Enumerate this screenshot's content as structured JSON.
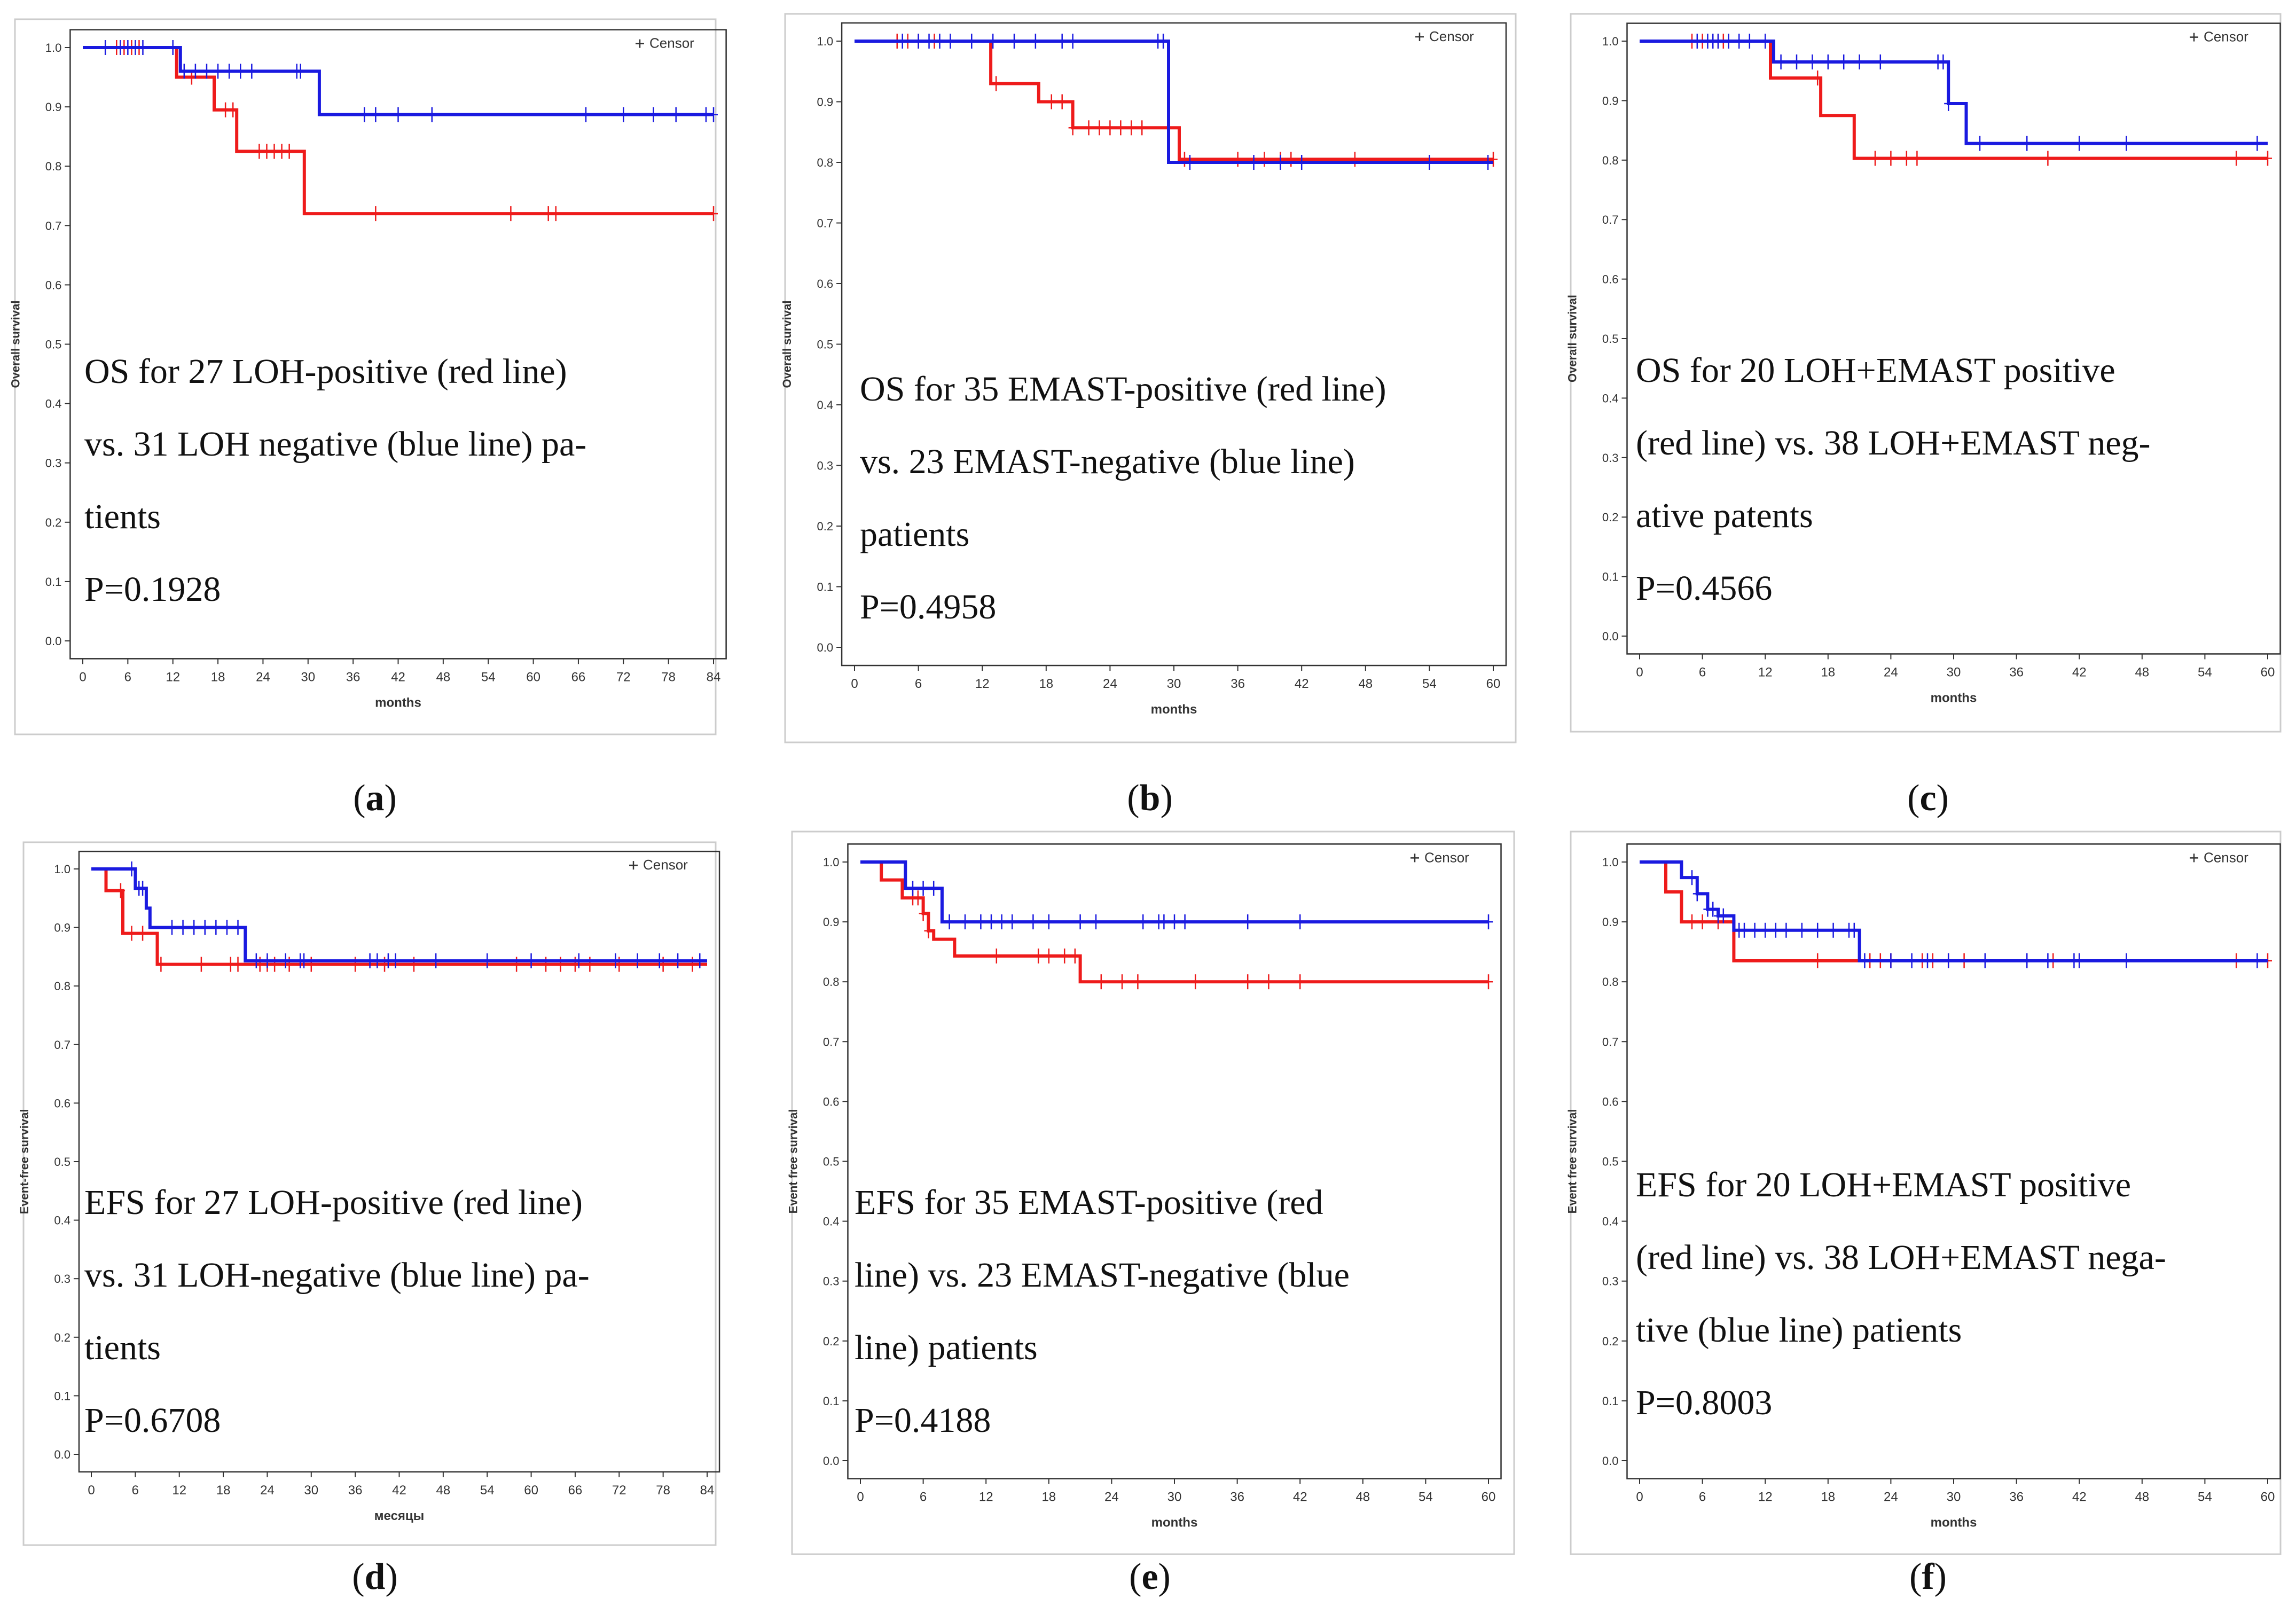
{
  "colors": {
    "red": "#ee1b1b",
    "blue": "#1a1ae0",
    "axis": "#333333",
    "frame": "#cccccc"
  },
  "chart_data": [
    {
      "type": "line",
      "id": "a",
      "label": "a",
      "legend": "Censor",
      "title_lines": [
        "OS for 27 LOH-positive (red line)",
        "vs. 31 LOH negative (blue line) pa-",
        "tients",
        "P=0.1928"
      ],
      "ylabel": "Overall survival",
      "xlabel": "months",
      "xlim": [
        0,
        84
      ],
      "ylim": [
        0,
        1
      ],
      "xticks": [
        "0",
        "6",
        "12",
        "18",
        "24",
        "30",
        "36",
        "42",
        "48",
        "54",
        "60",
        "66",
        "72",
        "78",
        "84"
      ],
      "yticks": [
        "0.0",
        "0.1",
        "0.2",
        "0.3",
        "0.4",
        "0.5",
        "0.6",
        "0.7",
        "0.8",
        "0.9",
        "1.0"
      ],
      "series": [
        {
          "name": "LOH-positive",
          "color": "red",
          "steps": [
            [
              0,
              1.0
            ],
            [
              12.5,
              0.95
            ],
            [
              17.5,
              0.895
            ],
            [
              20.5,
              0.825
            ],
            [
              29.5,
              0.72
            ],
            [
              84,
              0.72
            ]
          ],
          "censors": [
            4.5,
            5.5,
            6.5,
            7.5,
            14.5,
            19,
            20,
            23.5,
            24.5,
            25.5,
            26.5,
            27.5,
            39,
            57,
            62,
            63,
            84
          ]
        },
        {
          "name": "LOH-negative",
          "color": "blue",
          "steps": [
            [
              0,
              1.0
            ],
            [
              13,
              0.96
            ],
            [
              31.5,
              0.887
            ],
            [
              84,
              0.887
            ]
          ],
          "censors": [
            3,
            5,
            6,
            7,
            8,
            12,
            13.5,
            15,
            16.5,
            18,
            19.5,
            21,
            22.5,
            28.5,
            29,
            37.5,
            39,
            42,
            46.5,
            67,
            72,
            76,
            79,
            83,
            84
          ]
        }
      ]
    },
    {
      "type": "line",
      "id": "b",
      "label": "b",
      "legend": "Censor",
      "title_lines": [
        "OS for 35 EMAST-positive (red line)",
        "vs. 23 EMAST-negative (blue line)",
        "patients",
        "P=0.4958"
      ],
      "ylabel": "Overall survival",
      "xlabel": "months",
      "xlim": [
        0,
        60
      ],
      "ylim": [
        0,
        1
      ],
      "xticks": [
        "0",
        "6",
        "12",
        "18",
        "24",
        "30",
        "36",
        "42",
        "48",
        "54",
        "60"
      ],
      "yticks": [
        "0.0",
        "0.1",
        "0.2",
        "0.3",
        "0.4",
        "0.5",
        "0.6",
        "0.7",
        "0.8",
        "0.9",
        "1.0"
      ],
      "series": [
        {
          "name": "EMAST-positive",
          "color": "red",
          "steps": [
            [
              0,
              1.0
            ],
            [
              12.8,
              0.93
            ],
            [
              17.3,
              0.9
            ],
            [
              20.5,
              0.857
            ],
            [
              30.5,
              0.805
            ],
            [
              60,
              0.805
            ]
          ],
          "censors": [
            4,
            5,
            6,
            7.5,
            13.3,
            18.5,
            19.5,
            20.5,
            22,
            23,
            24,
            25,
            26,
            27,
            31,
            36,
            38.5,
            40,
            41,
            47,
            60
          ]
        },
        {
          "name": "EMAST-negative",
          "color": "blue",
          "steps": [
            [
              0,
              1.0
            ],
            [
              29.5,
              0.8
            ],
            [
              60,
              0.8
            ]
          ],
          "censors": [
            4.5,
            6,
            7,
            8,
            9,
            11,
            13,
            15,
            17,
            19.5,
            20.5,
            28.5,
            29,
            31.5,
            37.5,
            40,
            42,
            54,
            59.5
          ]
        }
      ]
    },
    {
      "type": "line",
      "id": "c",
      "label": "c",
      "legend": "Censor",
      "title_lines": [
        "OS for 20 LOH+EMAST positive",
        "(red line) vs. 38 LOH+EMAST neg-",
        "ative patents",
        "P=0.4566"
      ],
      "ylabel": "Overall survival",
      "xlabel": "months",
      "xlim": [
        0,
        60
      ],
      "ylim": [
        0,
        1
      ],
      "xticks": [
        "0",
        "6",
        "12",
        "18",
        "24",
        "30",
        "36",
        "42",
        "48",
        "54",
        "60"
      ],
      "yticks": [
        "0.0",
        "0.1",
        "0.2",
        "0.3",
        "0.4",
        "0.5",
        "0.6",
        "0.7",
        "0.8",
        "0.9",
        "1.0"
      ],
      "series": [
        {
          "name": "LOH+EMAST positive",
          "color": "red",
          "steps": [
            [
              0,
              1.0
            ],
            [
              12.5,
              0.938
            ],
            [
              17.3,
              0.875
            ],
            [
              20.5,
              0.803
            ],
            [
              60,
              0.803
            ]
          ],
          "censors": [
            5,
            6,
            7,
            7.5,
            8,
            17,
            22.5,
            24,
            25.5,
            26.5,
            39,
            57,
            60
          ]
        },
        {
          "name": "LOH+EMAST negative",
          "color": "blue",
          "steps": [
            [
              0,
              1.0
            ],
            [
              12.8,
              0.965
            ],
            [
              29.5,
              0.895
            ],
            [
              31.2,
              0.828
            ],
            [
              60,
              0.828
            ]
          ],
          "censors": [
            5.5,
            6.5,
            7,
            7.5,
            8.5,
            9.5,
            10.5,
            12,
            13.5,
            15,
            16.5,
            18,
            19.5,
            21,
            23,
            28.5,
            29,
            29.5,
            32.5,
            37,
            42,
            46.5,
            59
          ]
        }
      ]
    },
    {
      "type": "line",
      "id": "d",
      "label": "d",
      "legend": "Censor",
      "title_lines": [
        "EFS for 27 LOH-positive (red line)",
        "vs. 31 LOH-negative (blue line) pa-",
        "tients",
        "P=0.6708"
      ],
      "ylabel": "Event-free survival",
      "xlabel": "месяцы",
      "xlim": [
        0,
        84
      ],
      "ylim": [
        0,
        1
      ],
      "xticks": [
        "0",
        "6",
        "12",
        "18",
        "24",
        "30",
        "36",
        "42",
        "48",
        "54",
        "60",
        "66",
        "72",
        "78",
        "84"
      ],
      "yticks": [
        "0.0",
        "0.1",
        "0.2",
        "0.3",
        "0.4",
        "0.5",
        "0.6",
        "0.7",
        "0.8",
        "0.9",
        "1.0"
      ],
      "series": [
        {
          "name": "LOH-positive",
          "color": "red",
          "steps": [
            [
              0,
              1.0
            ],
            [
              2,
              0.963
            ],
            [
              4.3,
              0.89
            ],
            [
              9,
              0.837
            ],
            [
              84,
              0.837
            ]
          ],
          "censors": [
            4,
            5.5,
            7,
            9.5,
            15,
            19,
            20,
            23,
            24,
            25,
            27,
            30,
            36,
            40,
            44,
            58,
            62,
            64,
            66,
            68,
            72,
            78,
            82
          ]
        },
        {
          "name": "LOH-negative",
          "color": "blue",
          "steps": [
            [
              0,
              1.0
            ],
            [
              6,
              0.967
            ],
            [
              7.5,
              0.933
            ],
            [
              8,
              0.9
            ],
            [
              21,
              0.843
            ],
            [
              84,
              0.843
            ]
          ],
          "censors": [
            5.5,
            6.5,
            7,
            11,
            12.5,
            14,
            15.5,
            17,
            18.5,
            20,
            22.5,
            24,
            26.5,
            28.5,
            29,
            38,
            39,
            40.5,
            41.5,
            47,
            54,
            60,
            66.5,
            71.5,
            74.5,
            77.5,
            80,
            83
          ]
        }
      ]
    },
    {
      "type": "line",
      "id": "e",
      "label": "e",
      "legend": "Censor",
      "title_lines": [
        "EFS for 35 EMAST-positive (red",
        "line) vs. 23 EMAST-negative (blue",
        "line) patients",
        "P=0.4188"
      ],
      "ylabel": "Event free survival",
      "xlabel": "months",
      "xlim": [
        0,
        60
      ],
      "ylim": [
        0,
        1
      ],
      "xticks": [
        "0",
        "6",
        "12",
        "18",
        "24",
        "30",
        "36",
        "42",
        "48",
        "54",
        "60"
      ],
      "yticks": [
        "0.0",
        "0.1",
        "0.2",
        "0.3",
        "0.4",
        "0.5",
        "0.6",
        "0.7",
        "0.8",
        "0.9",
        "1.0"
      ],
      "series": [
        {
          "name": "EMAST-positive",
          "color": "red",
          "steps": [
            [
              0,
              1.0
            ],
            [
              2,
              0.97
            ],
            [
              4,
              0.94
            ],
            [
              6,
              0.914
            ],
            [
              6.5,
              0.885
            ],
            [
              7,
              0.871
            ],
            [
              9,
              0.843
            ],
            [
              21,
              0.8
            ],
            [
              60,
              0.8
            ]
          ],
          "censors": [
            5,
            5.5,
            6,
            6.5,
            13,
            17,
            18,
            19.5,
            20.5,
            23,
            25,
            26.5,
            32,
            37,
            39,
            42,
            60
          ]
        },
        {
          "name": "EMAST-negative",
          "color": "blue",
          "steps": [
            [
              0,
              1.0
            ],
            [
              4.3,
              0.956
            ],
            [
              7.8,
              0.9
            ],
            [
              60,
              0.9
            ]
          ],
          "censors": [
            5,
            6,
            7,
            8.5,
            10,
            11.5,
            12.5,
            13.5,
            14.5,
            16.5,
            18,
            21,
            22.5,
            27,
            28.5,
            29,
            30,
            31,
            37,
            42,
            60
          ]
        }
      ]
    },
    {
      "type": "line",
      "id": "f",
      "label": "f",
      "legend": "Censor",
      "title_lines": [
        "EFS for 20 LOH+EMAST positive",
        "(red line) vs. 38 LOH+EMAST nega-",
        "tive (blue line) patients",
        "P=0.8003"
      ],
      "ylabel": "Event free survival",
      "xlabel": "months",
      "xlim": [
        0,
        60
      ],
      "ylim": [
        0,
        1
      ],
      "xticks": [
        "0",
        "6",
        "12",
        "18",
        "24",
        "30",
        "36",
        "42",
        "48",
        "54",
        "60"
      ],
      "yticks": [
        "0.0",
        "0.1",
        "0.2",
        "0.3",
        "0.4",
        "0.5",
        "0.6",
        "0.7",
        "0.8",
        "0.9",
        "1.0"
      ],
      "series": [
        {
          "name": "LOH+EMAST positive",
          "color": "red",
          "steps": [
            [
              0,
              1.0
            ],
            [
              2.5,
              0.95
            ],
            [
              4,
              0.9
            ],
            [
              9,
              0.835
            ],
            [
              60,
              0.835
            ]
          ],
          "censors": [
            5,
            6,
            7.5,
            17,
            22,
            23,
            24,
            27,
            28,
            29.5,
            31,
            37,
            39.5,
            42,
            57,
            60
          ]
        },
        {
          "name": "LOH+EMAST negative",
          "color": "blue",
          "steps": [
            [
              0,
              1.0
            ],
            [
              4,
              0.974
            ],
            [
              5.5,
              0.947
            ],
            [
              6.5,
              0.921
            ],
            [
              7.5,
              0.91
            ],
            [
              9,
              0.886
            ],
            [
              21,
              0.835
            ],
            [
              60,
              0.835
            ]
          ],
          "censors": [
            5,
            5.5,
            6.5,
            7,
            7.5,
            8,
            9.5,
            10,
            11,
            12,
            13,
            14,
            15.5,
            17,
            18.5,
            20,
            20.5,
            21.5,
            24,
            26,
            27.5,
            29.5,
            33,
            37,
            39,
            41.5,
            42,
            46.5,
            59
          ]
        }
      ]
    }
  ]
}
